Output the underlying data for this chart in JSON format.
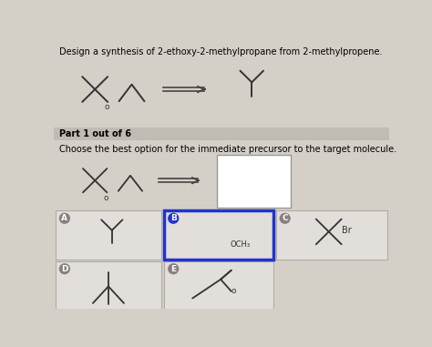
{
  "title_text": "Design a synthesis of 2-ethoxy-2-methylpropane from 2-methylpropene.",
  "part_text": "Part 1 out of 6",
  "choose_text": "Choose the best option for the immediate precursor to the target molecule.",
  "bg_color": "#d4d0c8",
  "card_bg": "#e2deda",
  "part_band_color": "#c0bcb4",
  "selected_card_border": "#2233cc",
  "unselected_border": "#b0aca4",
  "OCH3_label": "OCH₃",
  "Br_label": "Br",
  "labels": [
    "A",
    "B",
    "C",
    "D",
    "E"
  ],
  "label_circle_color": "#888080",
  "label_circle_selected": "#2233cc"
}
